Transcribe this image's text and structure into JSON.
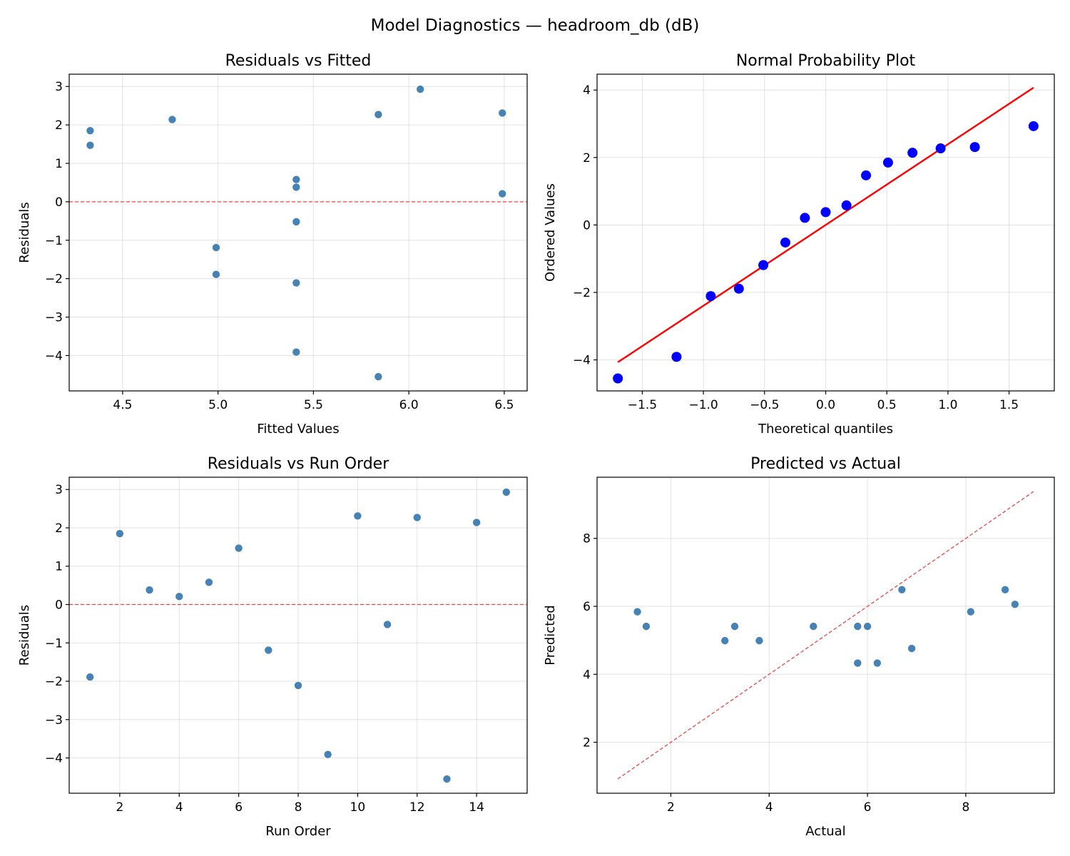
{
  "figure": {
    "suptitle": "Model Diagnostics — headroom_db (dB)"
  },
  "chart_data": [
    {
      "type": "scatter",
      "title": "Residuals vs Fitted",
      "xlabel": "Fitted Values",
      "ylabel": "Residuals",
      "xlim": [
        4.22,
        6.62
      ],
      "ylim": [
        -4.92,
        3.32
      ],
      "xticks": [
        4.5,
        5.0,
        5.5,
        6.0,
        6.5
      ],
      "yticks": [
        -4,
        -3,
        -2,
        -1,
        0,
        1,
        2,
        3
      ],
      "grid": true,
      "point_color": "#4682b4",
      "reference_line": {
        "kind": "horizontal",
        "y": 0,
        "color": "#e8474a",
        "style": "dashed"
      },
      "points": [
        [
          4.33,
          1.85
        ],
        [
          4.33,
          1.47
        ],
        [
          4.76,
          2.14
        ],
        [
          4.99,
          -1.19
        ],
        [
          4.99,
          -1.89
        ],
        [
          5.41,
          0.58
        ],
        [
          5.41,
          0.38
        ],
        [
          5.41,
          -0.52
        ],
        [
          5.41,
          -2.11
        ],
        [
          5.41,
          -3.91
        ],
        [
          5.84,
          2.27
        ],
        [
          5.84,
          -4.55
        ],
        [
          6.06,
          2.93
        ],
        [
          6.49,
          2.31
        ],
        [
          6.49,
          0.21
        ]
      ]
    },
    {
      "type": "scatter",
      "title": "Normal Probability Plot",
      "xlabel": "Theoretical quantiles",
      "ylabel": "Ordered Values",
      "xlim": [
        -1.87,
        1.87
      ],
      "ylim": [
        -4.92,
        4.47
      ],
      "xticks": [
        -1.5,
        -1.0,
        -0.5,
        0.0,
        0.5,
        1.0,
        1.5
      ],
      "yticks": [
        -4,
        -2,
        0,
        2,
        4
      ],
      "grid": true,
      "point_color": "#0000ff",
      "reference_line": {
        "kind": "segment",
        "x": [
          -1.7,
          1.7
        ],
        "y": [
          -4.07,
          4.07
        ],
        "color": "#ff0000",
        "style": "solid"
      },
      "points": [
        [
          -1.7,
          -4.55
        ],
        [
          -1.22,
          -3.91
        ],
        [
          -0.94,
          -2.11
        ],
        [
          -0.71,
          -1.89
        ],
        [
          -0.51,
          -1.19
        ],
        [
          -0.33,
          -0.52
        ],
        [
          -0.17,
          0.21
        ],
        [
          0.0,
          0.38
        ],
        [
          0.17,
          0.58
        ],
        [
          0.33,
          1.47
        ],
        [
          0.51,
          1.85
        ],
        [
          0.71,
          2.14
        ],
        [
          0.94,
          2.27
        ],
        [
          1.22,
          2.31
        ],
        [
          1.7,
          2.93
        ]
      ]
    },
    {
      "type": "scatter",
      "title": "Residuals vs Run Order",
      "xlabel": "Run Order",
      "ylabel": "Residuals",
      "xlim": [
        0.3,
        15.7
      ],
      "ylim": [
        -4.92,
        3.32
      ],
      "xticks": [
        2,
        4,
        6,
        8,
        10,
        12,
        14
      ],
      "yticks": [
        -4,
        -3,
        -2,
        -1,
        0,
        1,
        2,
        3
      ],
      "grid": true,
      "point_color": "#4682b4",
      "reference_line": {
        "kind": "horizontal",
        "y": 0,
        "color": "#e8474a",
        "style": "dashed"
      },
      "points": [
        [
          1,
          -1.89
        ],
        [
          2,
          1.85
        ],
        [
          3,
          0.38
        ],
        [
          4,
          0.21
        ],
        [
          5,
          0.58
        ],
        [
          6,
          1.47
        ],
        [
          7,
          -1.19
        ],
        [
          8,
          -2.11
        ],
        [
          9,
          -3.91
        ],
        [
          10,
          2.31
        ],
        [
          11,
          -0.52
        ],
        [
          12,
          2.27
        ],
        [
          13,
          -4.55
        ],
        [
          14,
          2.14
        ],
        [
          15,
          2.93
        ]
      ]
    },
    {
      "type": "scatter",
      "title": "Predicted vs Actual",
      "xlabel": "Actual",
      "ylabel": "Predicted",
      "xlim": [
        0.5,
        9.8
      ],
      "ylim": [
        0.5,
        9.8
      ],
      "xticks": [
        2,
        4,
        6,
        8
      ],
      "yticks": [
        2,
        4,
        6,
        8
      ],
      "grid": true,
      "point_color": "#4682b4",
      "reference_line": {
        "kind": "segment",
        "x": [
          0.92,
          9.38
        ],
        "y": [
          0.92,
          9.38
        ],
        "color": "#e8474a",
        "style": "dashed"
      },
      "points": [
        [
          1.32,
          5.84
        ],
        [
          1.5,
          5.41
        ],
        [
          3.1,
          4.99
        ],
        [
          3.3,
          5.41
        ],
        [
          3.8,
          4.99
        ],
        [
          4.9,
          5.41
        ],
        [
          5.8,
          5.41
        ],
        [
          5.8,
          4.33
        ],
        [
          6.0,
          5.41
        ],
        [
          6.2,
          4.33
        ],
        [
          6.7,
          6.49
        ],
        [
          6.9,
          4.76
        ],
        [
          8.1,
          5.84
        ],
        [
          8.8,
          6.49
        ],
        [
          9.0,
          6.06
        ]
      ]
    }
  ]
}
